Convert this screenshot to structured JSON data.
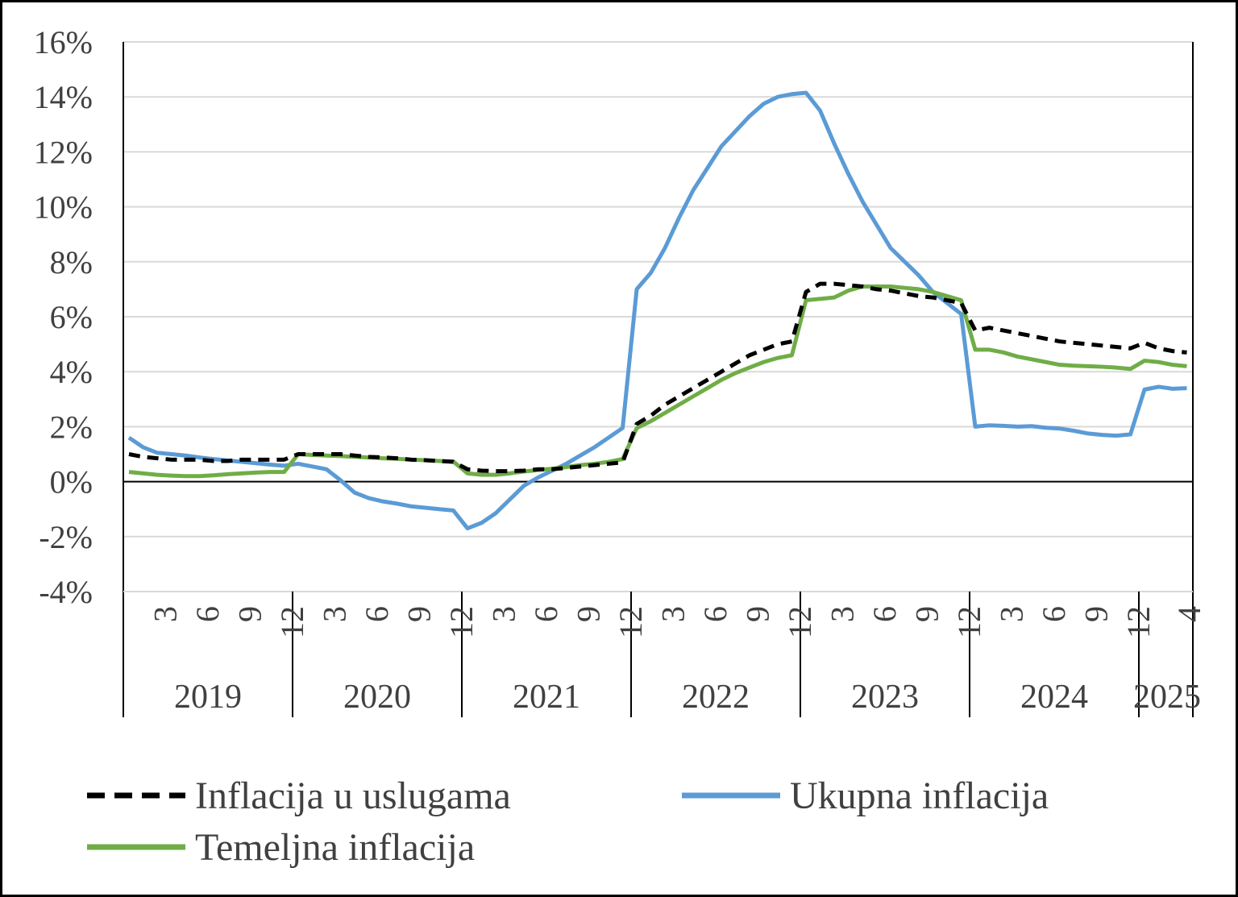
{
  "chart_data": {
    "type": "line",
    "y_ticks": [
      "16%",
      "14%",
      "12%",
      "10%",
      "8%",
      "6%",
      "4%",
      "2%",
      "0%",
      "-2%",
      "-4%"
    ],
    "ylim": [
      -4,
      16
    ],
    "y_unit": "%",
    "grid": true,
    "legend_position": "bottom",
    "x_month_ticks": [
      {
        "month": 3,
        "label": "3"
      },
      {
        "month": 6,
        "label": "6"
      },
      {
        "month": 9,
        "label": "9"
      },
      {
        "month": 12,
        "label": "12"
      },
      {
        "month": 15,
        "label": "3"
      },
      {
        "month": 18,
        "label": "6"
      },
      {
        "month": 21,
        "label": "9"
      },
      {
        "month": 24,
        "label": "12"
      },
      {
        "month": 27,
        "label": "3"
      },
      {
        "month": 30,
        "label": "6"
      },
      {
        "month": 33,
        "label": "9"
      },
      {
        "month": 36,
        "label": "12"
      },
      {
        "month": 39,
        "label": "3"
      },
      {
        "month": 42,
        "label": "6"
      },
      {
        "month": 45,
        "label": "9"
      },
      {
        "month": 48,
        "label": "12"
      },
      {
        "month": 51,
        "label": "3"
      },
      {
        "month": 54,
        "label": "6"
      },
      {
        "month": 57,
        "label": "9"
      },
      {
        "month": 60,
        "label": "12"
      },
      {
        "month": 63,
        "label": "3"
      },
      {
        "month": 66,
        "label": "6"
      },
      {
        "month": 69,
        "label": "9"
      },
      {
        "month": 72,
        "label": "12"
      },
      {
        "month": 76,
        "label": "4"
      }
    ],
    "years": [
      {
        "label": "2019",
        "start": 0,
        "end": 12
      },
      {
        "label": "2020",
        "start": 12,
        "end": 24
      },
      {
        "label": "2021",
        "start": 24,
        "end": 36
      },
      {
        "label": "2022",
        "start": 36,
        "end": 48
      },
      {
        "label": "2023",
        "start": 48,
        "end": 60
      },
      {
        "label": "2024",
        "start": 60,
        "end": 72
      },
      {
        "label": "2025",
        "start": 72,
        "end": 76
      }
    ],
    "x_range": [
      1,
      76
    ],
    "series": [
      {
        "name": "Inflacija u uslugama",
        "color": "#000000",
        "dash": true,
        "values": [
          1.0,
          0.9,
          0.85,
          0.8,
          0.8,
          0.8,
          0.75,
          0.75,
          0.8,
          0.8,
          0.8,
          0.8,
          1.0,
          1.0,
          1.0,
          1.0,
          0.95,
          0.9,
          0.88,
          0.85,
          0.8,
          0.78,
          0.75,
          0.72,
          0.45,
          0.4,
          0.38,
          0.38,
          0.4,
          0.45,
          0.45,
          0.5,
          0.55,
          0.6,
          0.65,
          0.7,
          2.1,
          2.4,
          2.8,
          3.1,
          3.4,
          3.7,
          4.0,
          4.3,
          4.6,
          4.8,
          5.0,
          5.1,
          6.9,
          7.2,
          7.2,
          7.15,
          7.1,
          7.0,
          6.95,
          6.85,
          6.75,
          6.7,
          6.6,
          6.5,
          5.5,
          5.6,
          5.5,
          5.4,
          5.3,
          5.2,
          5.1,
          5.05,
          5.0,
          4.95,
          4.9,
          4.85,
          5.05,
          4.85,
          4.75,
          4.7
        ]
      },
      {
        "name": "Ukupna inflacija",
        "color": "#5B9BD5",
        "dash": false,
        "values": [
          1.6,
          1.25,
          1.05,
          1.0,
          0.95,
          0.88,
          0.82,
          0.77,
          0.72,
          0.67,
          0.62,
          0.58,
          0.65,
          0.55,
          0.45,
          0.05,
          -0.4,
          -0.6,
          -0.72,
          -0.8,
          -0.9,
          -0.95,
          -1.0,
          -1.05,
          -1.7,
          -1.5,
          -1.15,
          -0.65,
          -0.15,
          0.15,
          0.4,
          0.65,
          0.95,
          1.25,
          1.6,
          1.95,
          7.0,
          7.6,
          8.5,
          9.6,
          10.6,
          11.4,
          12.2,
          12.75,
          13.3,
          13.75,
          14.0,
          14.1,
          14.15,
          13.5,
          12.3,
          11.2,
          10.2,
          9.35,
          8.5,
          8.0,
          7.5,
          6.9,
          6.5,
          6.1,
          2.0,
          2.05,
          2.03,
          2.0,
          2.02,
          1.96,
          1.93,
          1.85,
          1.75,
          1.7,
          1.67,
          1.72,
          3.35,
          3.45,
          3.38,
          3.4
        ]
      },
      {
        "name": "Temeljna inflacija",
        "color": "#70AD47",
        "dash": false,
        "values": [
          0.35,
          0.3,
          0.25,
          0.22,
          0.2,
          0.2,
          0.23,
          0.27,
          0.3,
          0.33,
          0.35,
          0.35,
          1.0,
          0.97,
          0.95,
          0.93,
          0.9,
          0.88,
          0.85,
          0.83,
          0.8,
          0.78,
          0.75,
          0.73,
          0.3,
          0.25,
          0.25,
          0.3,
          0.37,
          0.42,
          0.47,
          0.53,
          0.6,
          0.65,
          0.72,
          0.82,
          1.95,
          2.2,
          2.5,
          2.8,
          3.1,
          3.4,
          3.7,
          3.95,
          4.15,
          4.35,
          4.5,
          4.6,
          6.6,
          6.65,
          6.7,
          6.95,
          7.1,
          7.1,
          7.1,
          7.05,
          7.0,
          6.9,
          6.75,
          6.6,
          4.8,
          4.8,
          4.7,
          4.55,
          4.45,
          4.35,
          4.25,
          4.22,
          4.2,
          4.18,
          4.15,
          4.1,
          4.4,
          4.35,
          4.25,
          4.2
        ]
      }
    ]
  }
}
